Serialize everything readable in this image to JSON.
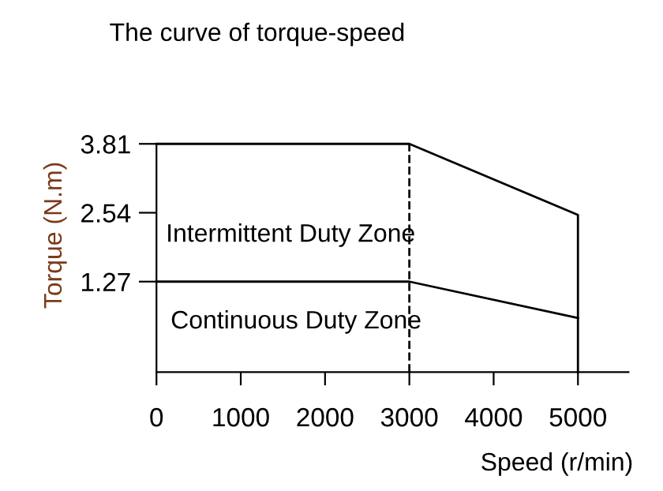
{
  "chart_data": {
    "type": "line",
    "title": "The curve of torque-speed",
    "xlabel": "Speed (r/min)",
    "ylabel": "Torque (N.m)",
    "series": [
      {
        "color": "#000000",
        "x": [
          0,
          3000,
          5000,
          5000
        ],
        "values": [
          3.81,
          3.81,
          2.5,
          -0.4
        ]
      },
      {
        "color": "#000000",
        "x": [
          0,
          3000,
          5000
        ],
        "values": [
          1.27,
          1.27,
          0.6
        ]
      }
    ],
    "ref_lines": [
      {
        "axis": "x",
        "value": 3000,
        "label": null,
        "color": "#000000",
        "line_style": "dashed"
      }
    ],
    "annotations": [
      "Intermittent Duty Zone",
      "Continuous Duty Zone"
    ],
    "xlim": [
      0,
      5600
    ],
    "xticks": [
      0,
      1000,
      2000,
      3000,
      4000,
      5000
    ],
    "ylim": [
      -0.4,
      3.81
    ],
    "yticks": [
      1.27,
      2.54,
      3.81
    ],
    "grid": false,
    "legend": false,
    "marker": "none",
    "line_style": "solid"
  }
}
